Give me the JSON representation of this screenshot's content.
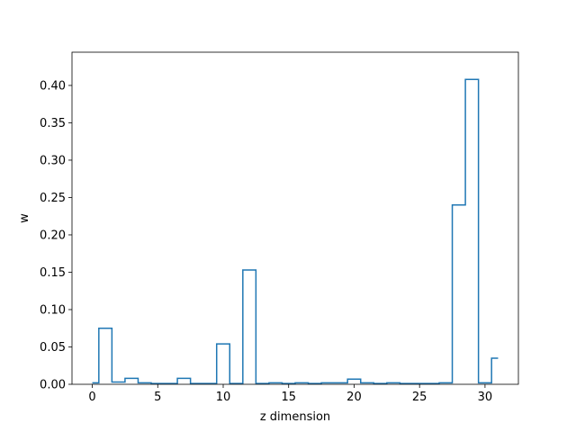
{
  "chart_data": {
    "type": "step",
    "title": "",
    "xlabel": "z dimension",
    "ylabel": "w",
    "xlim": [
      -1.55,
      32.55
    ],
    "ylim": [
      0,
      0.4445
    ],
    "xticks": [
      0,
      5,
      10,
      15,
      20,
      25,
      30
    ],
    "yticks": [
      0.0,
      0.05,
      0.1,
      0.15,
      0.2,
      0.25,
      0.3,
      0.35,
      0.4
    ],
    "tick_labels_x": [
      "0",
      "5",
      "10",
      "15",
      "20",
      "25",
      "30"
    ],
    "tick_labels_y": [
      "0.00",
      "0.05",
      "0.10",
      "0.15",
      "0.20",
      "0.25",
      "0.30",
      "0.35",
      "0.40"
    ],
    "series": [
      {
        "x": [
          0,
          1,
          2,
          3,
          4,
          5,
          6,
          7,
          8,
          9,
          10,
          11,
          12,
          13,
          14,
          15,
          16,
          17,
          18,
          19,
          20,
          21,
          22,
          23,
          24,
          25,
          26,
          27,
          28,
          29,
          30,
          31
        ],
        "y": [
          0.002,
          0.075,
          0.003,
          0.008,
          0.002,
          0.001,
          0.001,
          0.008,
          0.001,
          0.001,
          0.054,
          0.001,
          0.153,
          0.001,
          0.002,
          0.001,
          0.002,
          0.001,
          0.002,
          0.002,
          0.007,
          0.002,
          0.001,
          0.002,
          0.001,
          0.001,
          0.001,
          0.002,
          0.24,
          0.408,
          0.002,
          0.035
        ],
        "color": "#1f77b4",
        "where": "mid"
      }
    ],
    "grid": false
  }
}
